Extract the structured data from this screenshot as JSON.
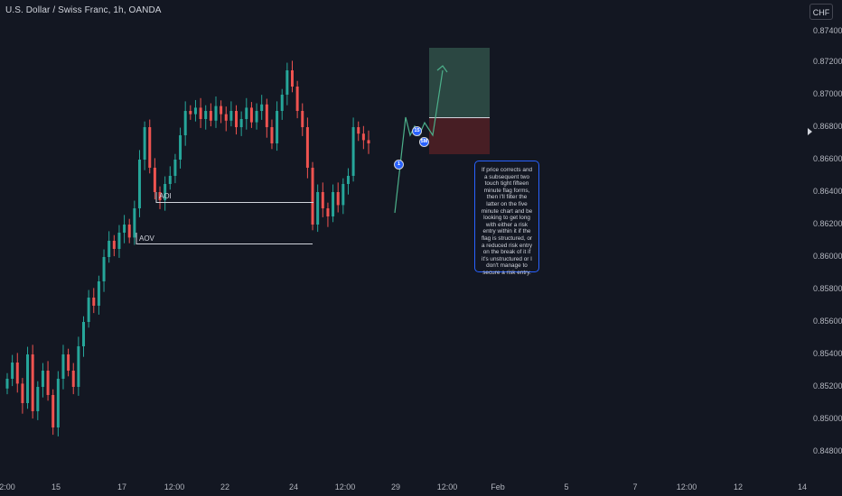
{
  "header": {
    "title": "U.S. Dollar / Swiss Franc, 1h, OANDA",
    "currency_button": "CHF"
  },
  "price_scale": {
    "labels": [
      "0.87400",
      "0.87200",
      "0.87000",
      "0.86800",
      "0.86600",
      "0.86400",
      "0.86200",
      "0.86000",
      "0.85800",
      "0.85600",
      "0.85400",
      "0.85200",
      "0.85000",
      "0.84800"
    ]
  },
  "time_scale": {
    "labels": [
      "2:00",
      "15",
      "17",
      "12:00",
      "22",
      "24",
      "12:00",
      "29",
      "12:00",
      "Feb",
      "5",
      "7",
      "12:00",
      "12",
      "14"
    ]
  },
  "annotations": {
    "aoi_label": "AOI",
    "aov_label": "AOV",
    "marker_1": "1",
    "marker_15": "15",
    "marker_5m": "5M",
    "note": "If price corrects and a subsequent two touch tight fifteen minute flag forms, then I'll filter the latter on the five minute chart and be looking to get long with either a risk entry within it if the flag is structured, or a reduced risk entry on the break of it if it's unstructured or I don't manage to secure a risk entry."
  },
  "colors": {
    "background": "#131722",
    "bull": "#26a69a",
    "bear": "#ef5350",
    "target_zone": "#2c4a45",
    "stop_zone": "#4a1f25",
    "path": "#4caf8a",
    "marker": "#2962ff"
  },
  "chart_data": {
    "type": "candlestick",
    "symbol": "U.S. Dollar / Swiss Franc",
    "timeframe": "1h",
    "source": "OANDA",
    "ylim": [
      0.8475,
      0.8745
    ],
    "aoi_level": 0.8633,
    "aov_level": 0.8608,
    "entry_level": 0.8685,
    "target_level": 0.8729,
    "stop_level": 0.8663,
    "close": [
      0.8525,
      0.8535,
      0.8522,
      0.851,
      0.854,
      0.8505,
      0.852,
      0.853,
      0.8515,
      0.8495,
      0.8525,
      0.854,
      0.853,
      0.852,
      0.8545,
      0.856,
      0.8575,
      0.857,
      0.8585,
      0.86,
      0.861,
      0.8605,
      0.8615,
      0.862,
      0.8612,
      0.863,
      0.866,
      0.868,
      0.8655,
      0.864,
      0.8635,
      0.8645,
      0.865,
      0.866,
      0.8675,
      0.869,
      0.8688,
      0.8692,
      0.8685,
      0.869,
      0.8684,
      0.8693,
      0.8688,
      0.8684,
      0.869,
      0.868,
      0.8685,
      0.8692,
      0.8683,
      0.869,
      0.8694,
      0.868,
      0.867,
      0.869,
      0.87,
      0.8715,
      0.8705,
      0.869,
      0.868,
      0.8655,
      0.862,
      0.864,
      0.863,
      0.8625,
      0.864,
      0.8632,
      0.8645,
      0.865,
      0.868,
      0.8676,
      0.8672,
      0.867
    ]
  }
}
